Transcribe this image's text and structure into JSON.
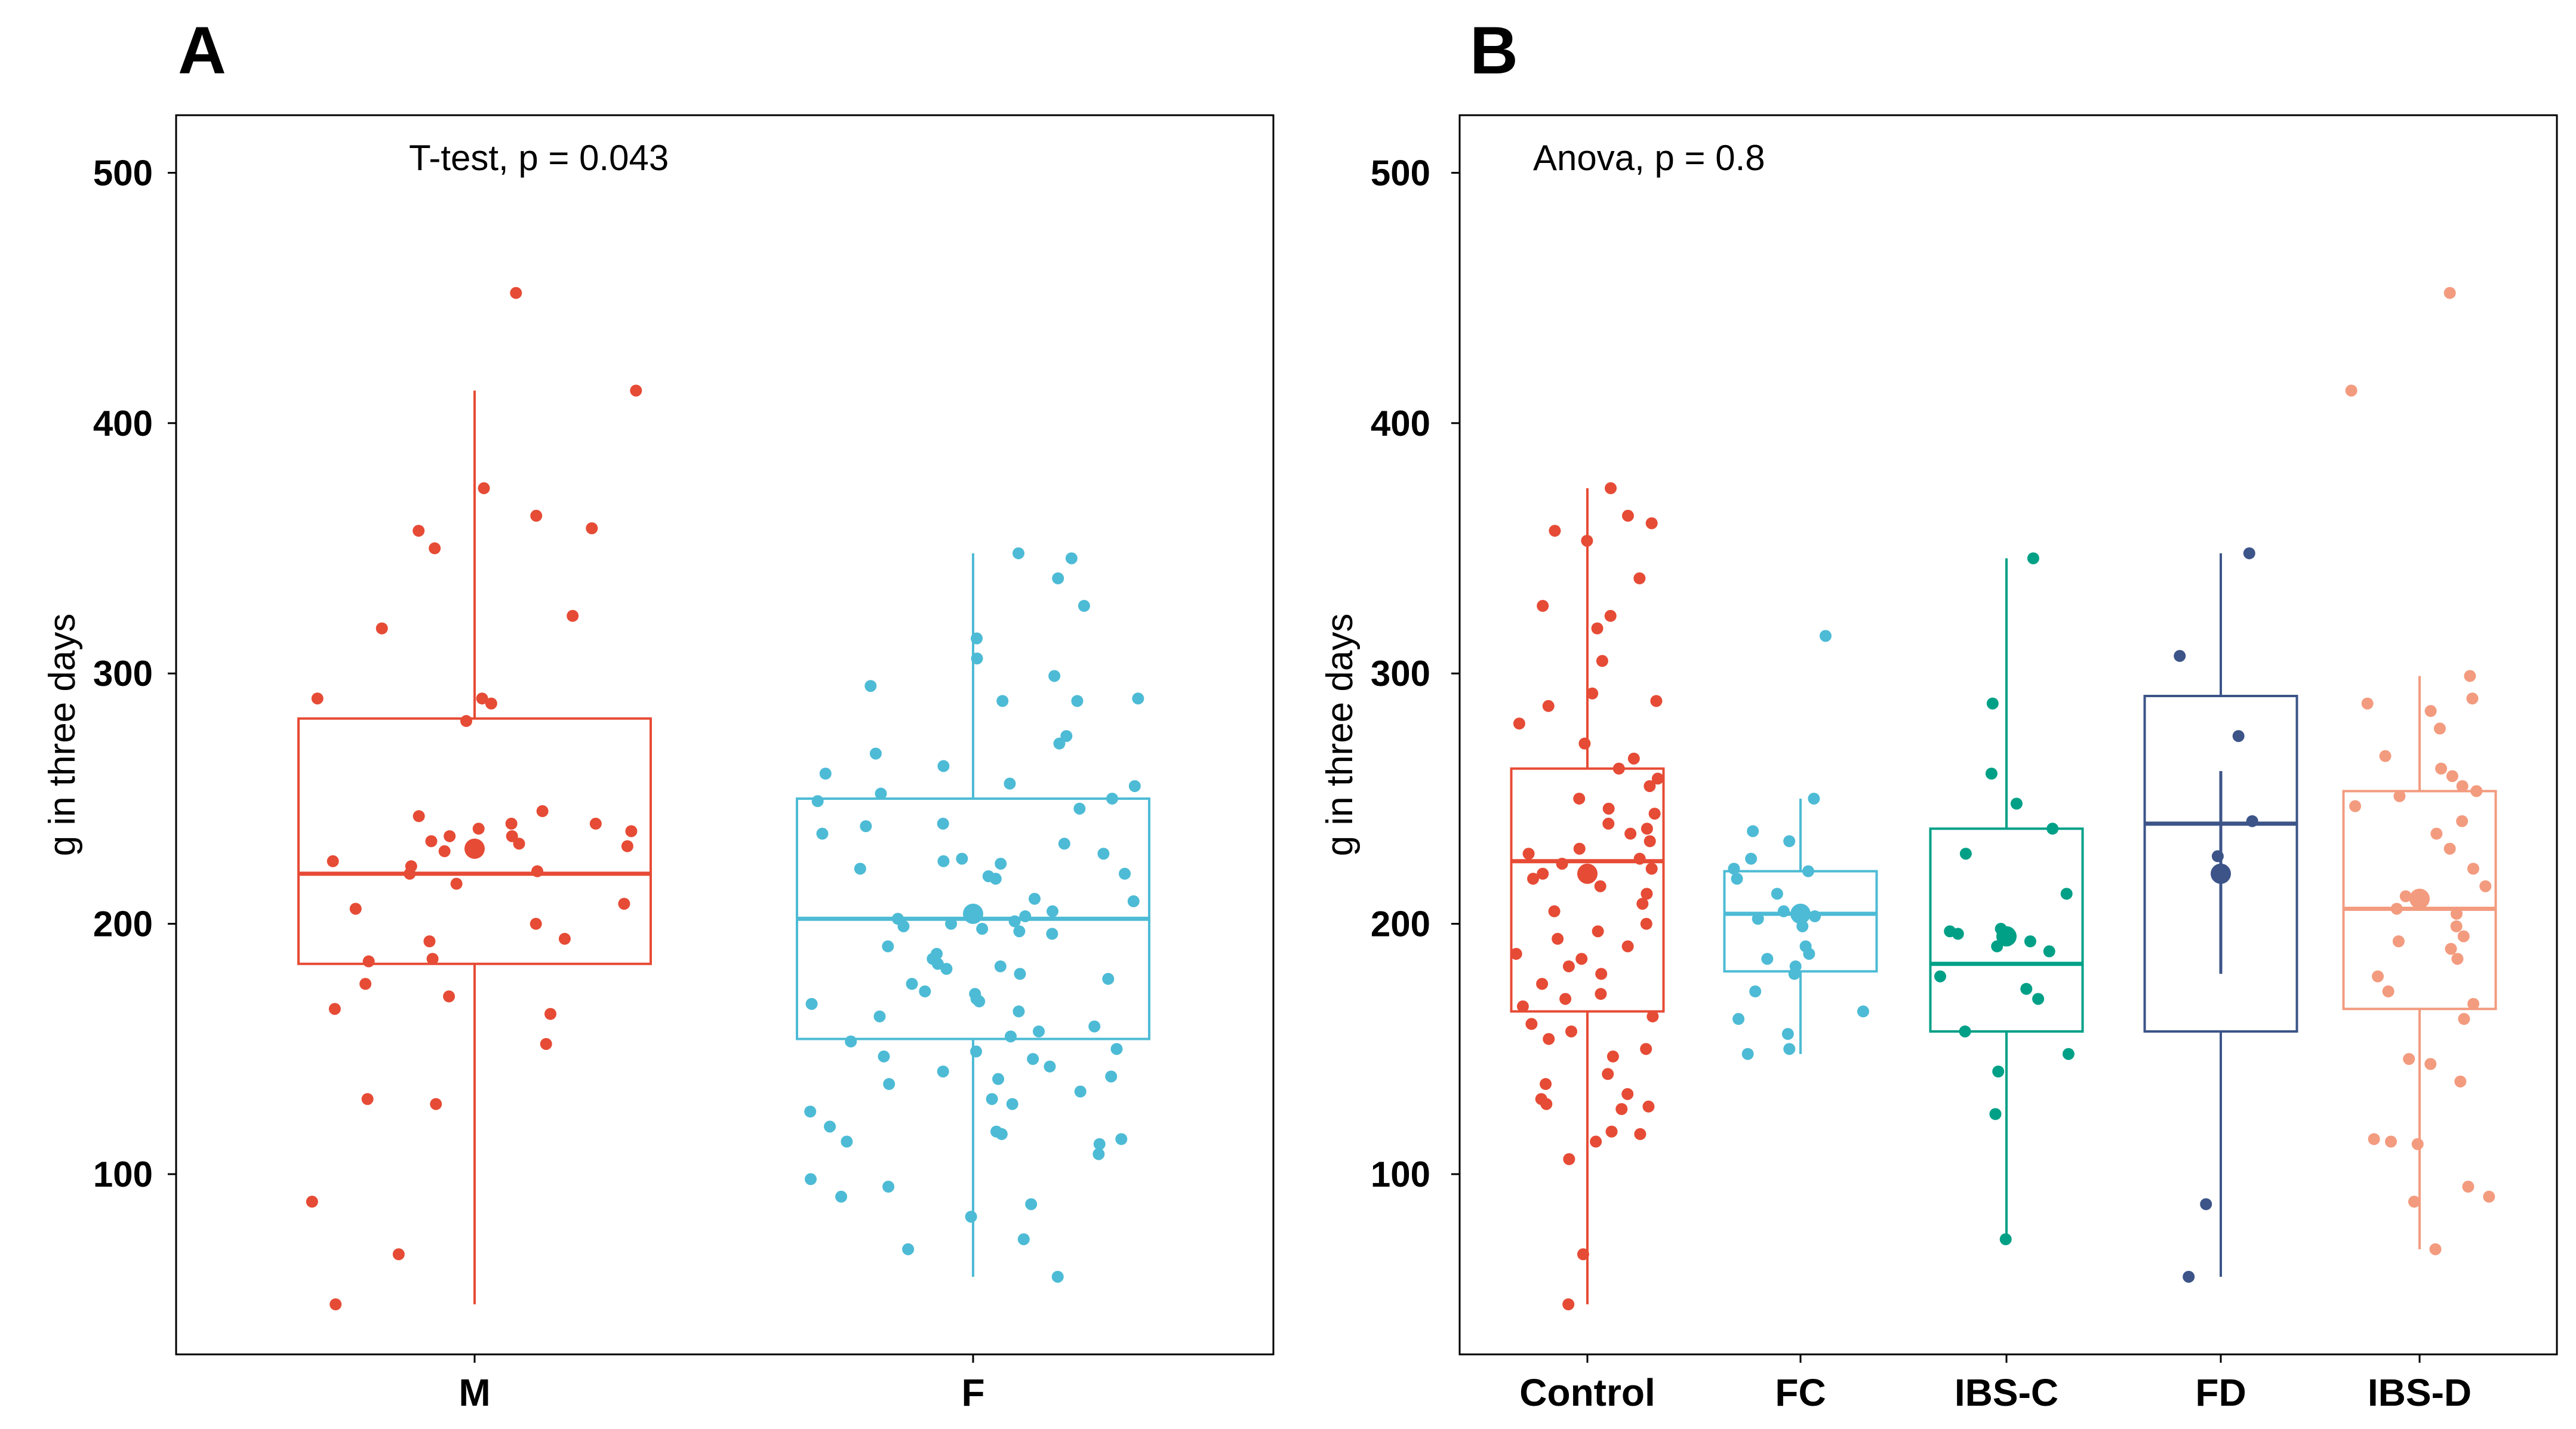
{
  "chart_data": [
    {
      "type": "boxplot",
      "panel_label": "A",
      "annotation": "T-test, p = 0.043",
      "xlabel": "",
      "ylabel": "g in three days",
      "ylim": [
        28,
        523
      ],
      "yticks": [
        100,
        200,
        300,
        400,
        500
      ],
      "grid": false,
      "groups": [
        {
          "name": "M",
          "color": "#e64b35",
          "box": {
            "whisker_low": 48,
            "q1": 184,
            "median": 220,
            "q3": 282,
            "whisker_high": 413
          },
          "mean": 230,
          "points": [
            452,
            413,
            374,
            363,
            358,
            357,
            350,
            323,
            318,
            290,
            290,
            288,
            281,
            245,
            243,
            240,
            240,
            238,
            237,
            235,
            235,
            233,
            232,
            231,
            229,
            225,
            223,
            221,
            220,
            216,
            208,
            206,
            200,
            194,
            193,
            186,
            185,
            176,
            171,
            166,
            164,
            152,
            130,
            128,
            89,
            68,
            48
          ]
        },
        {
          "name": "F",
          "color": "#4dbbd5",
          "box": {
            "whisker_low": 59,
            "q1": 154,
            "median": 202,
            "q3": 250,
            "whisker_high": 348
          },
          "mean": 204,
          "points": [
            348,
            346,
            338,
            327,
            314,
            306,
            299,
            295,
            290,
            289,
            289,
            275,
            272,
            268,
            263,
            260,
            256,
            255,
            252,
            250,
            249,
            246,
            240,
            239,
            236,
            232,
            228,
            226,
            225,
            224,
            222,
            220,
            219,
            218,
            210,
            209,
            205,
            203,
            202,
            201,
            200,
            199,
            198,
            197,
            196,
            191,
            188,
            186,
            184,
            183,
            182,
            180,
            178,
            176,
            173,
            172,
            170,
            169,
            168,
            165,
            163,
            159,
            157,
            155,
            153,
            150,
            149,
            147,
            146,
            143,
            141,
            139,
            138,
            136,
            133,
            130,
            128,
            125,
            119,
            117,
            116,
            114,
            113,
            112,
            108,
            98,
            95,
            91,
            88,
            83,
            74,
            70,
            59
          ]
        }
      ]
    },
    {
      "type": "boxplot",
      "panel_label": "B",
      "annotation": "Anova, p = 0.8",
      "xlabel": "",
      "ylabel": "g in three days",
      "ylim": [
        28,
        523
      ],
      "yticks": [
        100,
        200,
        300,
        400,
        500
      ],
      "grid": false,
      "groups": [
        {
          "name": "Control",
          "color": "#e64b35",
          "box": {
            "whisker_low": 48,
            "q1": 165,
            "median": 225,
            "q3": 262,
            "whisker_high": 374
          },
          "mean": 220,
          "points": [
            374,
            363,
            360,
            357,
            353,
            338,
            327,
            323,
            318,
            305,
            292,
            289,
            287,
            280,
            272,
            266,
            262,
            258,
            255,
            250,
            246,
            244,
            240,
            238,
            236,
            233,
            230,
            228,
            226,
            224,
            222,
            220,
            218,
            215,
            212,
            208,
            205,
            200,
            197,
            194,
            191,
            188,
            186,
            183,
            180,
            176,
            172,
            170,
            167,
            163,
            160,
            157,
            154,
            150,
            147,
            140,
            136,
            132,
            130,
            128,
            127,
            126,
            117,
            116,
            113,
            106,
            68,
            48
          ]
        },
        {
          "name": "FC",
          "color": "#4dbbd5",
          "box": {
            "whisker_low": 148,
            "q1": 181,
            "median": 204,
            "q3": 221,
            "whisker_high": 250
          },
          "mean": 204,
          "points": [
            315,
            250,
            237,
            233,
            226,
            222,
            221,
            218,
            212,
            205,
            203,
            202,
            199,
            191,
            188,
            186,
            183,
            180,
            173,
            165,
            162,
            156,
            150,
            148
          ]
        },
        {
          "name": "IBS-C",
          "color": "#00a087",
          "box": {
            "whisker_low": 74,
            "q1": 157,
            "median": 184,
            "q3": 238,
            "whisker_high": 346
          },
          "mean": 195,
          "points": [
            346,
            288,
            260,
            248,
            238,
            228,
            212,
            198,
            197,
            196,
            193,
            191,
            189,
            179,
            174,
            170,
            157,
            148,
            141,
            124,
            74
          ]
        },
        {
          "name": "FD",
          "color": "#3c5488",
          "box": {
            "whisker_low": 59,
            "q1": 157,
            "median": 240,
            "q3": 291,
            "whisker_high": 348
          },
          "mean": 220,
          "mean_sd": [
            180,
            261
          ],
          "points": [
            348,
            307,
            275,
            241,
            227,
            88,
            59
          ]
        },
        {
          "name": "IBS-D",
          "color": "#f39b7f",
          "box": {
            "whisker_low": 70,
            "q1": 166,
            "median": 206,
            "q3": 253,
            "whisker_high": 299
          },
          "mean": 210,
          "points": [
            452,
            413,
            299,
            290,
            288,
            285,
            278,
            267,
            262,
            259,
            255,
            253,
            251,
            247,
            241,
            236,
            230,
            222,
            215,
            211,
            206,
            204,
            199,
            195,
            193,
            190,
            186,
            179,
            173,
            168,
            162,
            146,
            144,
            137,
            114,
            113,
            112,
            95,
            91,
            89,
            70
          ]
        }
      ]
    }
  ]
}
